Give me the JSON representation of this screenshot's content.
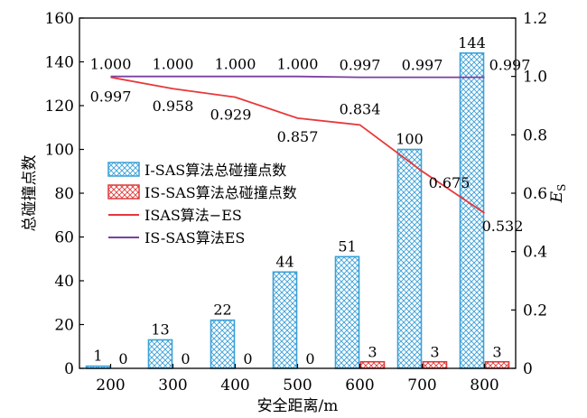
{
  "chart_data": {
    "type": "bar",
    "xlabel": "安全距离/m",
    "ylabel": "总碰撞点数",
    "y2label": "E",
    "y2label_sub": "S",
    "categories": [
      "200",
      "300",
      "400",
      "500",
      "600",
      "700",
      "800"
    ],
    "ylim": [
      0,
      160
    ],
    "yticks": [
      "0",
      "20",
      "40",
      "60",
      "80",
      "100",
      "120",
      "140",
      "160"
    ],
    "y2lim": [
      0,
      1.2
    ],
    "y2ticks": [
      "0",
      "0.2",
      "0.4",
      "0.6",
      "0.8",
      "1.0",
      "1.2"
    ],
    "legend_position": "center-left",
    "grid": false,
    "series": [
      {
        "name": "I-SAS算法总碰撞点数",
        "kind": "bar",
        "axis": "left",
        "color": "#3aa0d8",
        "values": [
          1,
          13,
          22,
          44,
          51,
          100,
          144
        ],
        "labels": [
          "1",
          "13",
          "22",
          "44",
          "51",
          "100",
          "144"
        ]
      },
      {
        "name": "IS-SAS算法总碰撞点数",
        "kind": "bar",
        "axis": "left",
        "color": "#e03a3a",
        "values": [
          0,
          0,
          0,
          0,
          3,
          3,
          3
        ],
        "labels": [
          "0",
          "0",
          "0",
          "0",
          "3",
          "3",
          "3"
        ]
      },
      {
        "name": "ISAS算法−ES",
        "kind": "line",
        "axis": "right",
        "color": "#e8383a",
        "values": [
          0.997,
          0.958,
          0.929,
          0.857,
          0.834,
          0.675,
          0.532
        ],
        "labels": [
          "0.997",
          "0.958",
          "0.929",
          "0.857",
          "0.834",
          "0.675",
          "0.532"
        ]
      },
      {
        "name": "IS-SAS算法ES",
        "kind": "line",
        "axis": "right",
        "color": "#7b3fa0",
        "values": [
          1.0,
          1.0,
          1.0,
          1.0,
          0.997,
          0.997,
          0.997
        ],
        "labels": [
          "1.000",
          "1.000",
          "1.000",
          "1.000",
          "0.997",
          "0.997",
          "0.997"
        ]
      }
    ]
  }
}
